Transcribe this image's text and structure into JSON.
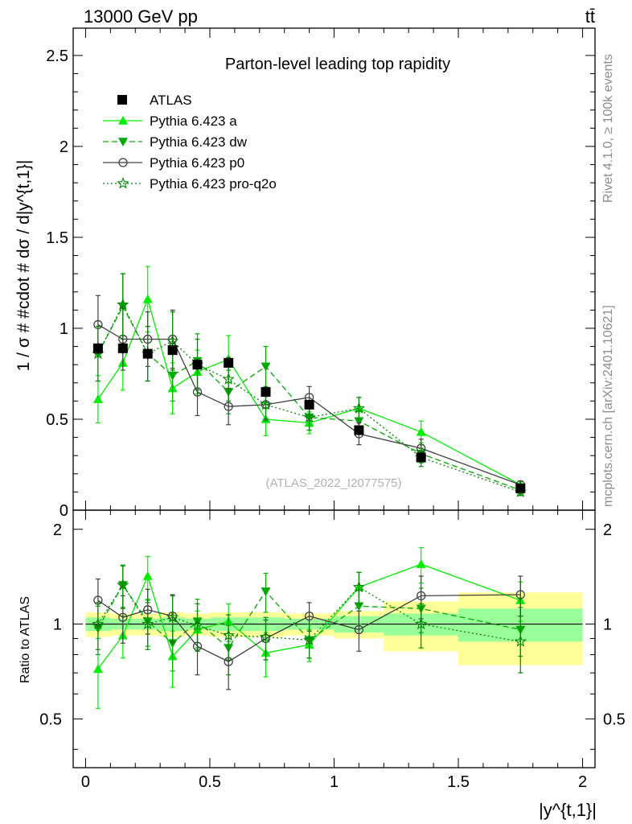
{
  "header": {
    "energy": "13000 GeV pp",
    "process": "tt̄"
  },
  "side_labels": {
    "rivet": "Rivet 4.1.0, ≥ 100k events",
    "mcplots": "mcplots.cern.ch [arXiv:2401.10621]"
  },
  "colors": {
    "atlas": "#000000",
    "pythia_a": "#00ee00",
    "pythia_dw": "#00aa00",
    "pythia_p0": "#404040",
    "pythia_proq2o": "#008800",
    "band_outer": "#ffff99",
    "band_inner": "#99ff99"
  },
  "chart_data": [
    {
      "type": "line",
      "title": "Parton-level leading top rapidity",
      "ylabel": "1 / σ # #cdot # dσ / d|y^{t,1}|",
      "xlabel": "",
      "watermark": "(ATLAS_2022_I2077575)",
      "xlim": [
        -0.05,
        2.05
      ],
      "ylim": [
        0,
        2.65
      ],
      "yticks": [
        0,
        0.5,
        1,
        1.5,
        2,
        2.5
      ],
      "ytick_labels": [
        "0",
        "0.5",
        "1",
        "1.5",
        "2",
        "2.5"
      ],
      "x": [
        0.05,
        0.15,
        0.25,
        0.35,
        0.45,
        0.575,
        0.725,
        0.9,
        1.1,
        1.35,
        1.75
      ],
      "data": {
        "name": "ATLAS",
        "xlow": [
          0.0,
          0.1,
          0.2,
          0.3,
          0.4,
          0.5,
          0.65,
          0.8,
          1.0,
          1.2,
          1.5
        ],
        "xhigh": [
          0.1,
          0.2,
          0.3,
          0.4,
          0.5,
          0.65,
          0.8,
          1.0,
          1.2,
          1.5,
          2.0
        ],
        "values": [
          0.89,
          0.89,
          0.86,
          0.88,
          0.8,
          0.81,
          0.65,
          0.58,
          0.44,
          0.29,
          0.12
        ],
        "errors": [
          0.03,
          0.03,
          0.03,
          0.03,
          0.03,
          0.03,
          0.03,
          0.02,
          0.02,
          0.02,
          0.02
        ]
      },
      "series": [
        {
          "name": "Pythia 6.423 a",
          "style": "solid",
          "marker": "triangle-up",
          "values": [
            0.61,
            0.81,
            1.16,
            0.67,
            0.76,
            0.83,
            0.5,
            0.48,
            0.56,
            0.43,
            0.14
          ],
          "errors": [
            0.13,
            0.15,
            0.18,
            0.14,
            0.12,
            0.13,
            0.09,
            0.06,
            0.06,
            0.06,
            0.02
          ]
        },
        {
          "name": "Pythia 6.423 dw",
          "style": "dashed",
          "marker": "triangle-down",
          "values": [
            0.86,
            1.12,
            0.86,
            0.74,
            0.82,
            0.65,
            0.79,
            0.51,
            0.49,
            0.31,
            0.11
          ],
          "errors": [
            0.15,
            0.18,
            0.15,
            0.14,
            0.15,
            0.12,
            0.11,
            0.07,
            0.06,
            0.05,
            0.02
          ]
        },
        {
          "name": "Pythia 6.423 p0",
          "style": "solid",
          "marker": "circle-open",
          "values": [
            1.02,
            0.94,
            0.94,
            0.94,
            0.65,
            0.57,
            0.58,
            0.62,
            0.42,
            0.34,
            0.14
          ],
          "errors": [
            0.16,
            0.17,
            0.15,
            0.16,
            0.13,
            0.1,
            0.08,
            0.06,
            0.06,
            0.05,
            0.02
          ]
        },
        {
          "name": "Pythia 6.423 pro-q2o",
          "style": "dotted",
          "marker": "star",
          "values": [
            0.86,
            1.13,
            0.86,
            0.93,
            0.8,
            0.72,
            0.58,
            0.51,
            0.56,
            0.29,
            0.1
          ],
          "errors": [
            0.15,
            0.17,
            0.15,
            0.16,
            0.14,
            0.12,
            0.09,
            0.07,
            0.06,
            0.05,
            0.02
          ]
        }
      ],
      "legend": [
        "ATLAS",
        "Pythia 6.423 a",
        "Pythia 6.423 dw",
        "Pythia 6.423 p0",
        "Pythia 6.423 pro-q2o"
      ]
    },
    {
      "type": "line",
      "title": "",
      "ylabel": "Ratio to ATLAS",
      "xlabel": "|y^{t,1}|",
      "xlim": [
        -0.05,
        2.05
      ],
      "ylim": [
        0.35,
        2.3
      ],
      "yscale": "log",
      "yticks": [
        0.5,
        1,
        2
      ],
      "ytick_labels": [
        "0.5",
        "1",
        "2"
      ],
      "xticks": [
        0,
        0.5,
        1,
        1.5,
        2
      ],
      "xtick_labels": [
        "0",
        "0.5",
        "1",
        "1.5",
        "2"
      ],
      "x": [
        0.05,
        0.15,
        0.25,
        0.35,
        0.45,
        0.575,
        0.725,
        0.9,
        1.1,
        1.35,
        1.75
      ],
      "band_inner": [
        0.05,
        0.04,
        0.04,
        0.05,
        0.04,
        0.05,
        0.05,
        0.04,
        0.06,
        0.08,
        0.12
      ],
      "band_outer": [
        0.09,
        0.08,
        0.08,
        0.09,
        0.08,
        0.09,
        0.09,
        0.08,
        0.1,
        0.18,
        0.26
      ],
      "series": [
        {
          "name": "Pythia 6.423 a",
          "style": "solid",
          "marker": "triangle-up",
          "values": [
            0.72,
            0.92,
            1.42,
            0.79,
            0.96,
            1.02,
            0.81,
            0.86,
            1.31,
            1.55,
            1.19
          ],
          "errors": [
            0.18,
            0.14,
            0.22,
            0.16,
            0.14,
            0.14,
            0.13,
            0.1,
            0.15,
            0.2,
            0.17
          ]
        },
        {
          "name": "Pythia 6.423 dw",
          "style": "dashed",
          "marker": "triangle-down",
          "values": [
            0.97,
            1.33,
            1.02,
            0.87,
            1.02,
            0.84,
            1.27,
            0.89,
            1.14,
            1.12,
            0.96
          ],
          "errors": [
            0.17,
            0.21,
            0.17,
            0.16,
            0.18,
            0.15,
            0.18,
            0.11,
            0.14,
            0.18,
            0.17
          ]
        },
        {
          "name": "Pythia 6.423 p0",
          "style": "solid",
          "marker": "circle-open",
          "values": [
            1.19,
            1.05,
            1.11,
            1.06,
            0.85,
            0.76,
            0.9,
            1.06,
            0.96,
            1.23,
            1.24
          ],
          "errors": [
            0.2,
            0.18,
            0.18,
            0.18,
            0.16,
            0.14,
            0.13,
            0.11,
            0.14,
            0.19,
            0.18
          ]
        },
        {
          "name": "Pythia 6.423 pro-q2o",
          "style": "dotted",
          "marker": "star",
          "values": [
            1.0,
            1.33,
            1.0,
            1.05,
            0.99,
            0.92,
            0.91,
            0.89,
            1.31,
            1.0,
            0.88
          ],
          "errors": [
            0.17,
            0.2,
            0.17,
            0.18,
            0.17,
            0.15,
            0.14,
            0.11,
            0.15,
            0.16,
            0.18
          ]
        }
      ]
    }
  ]
}
